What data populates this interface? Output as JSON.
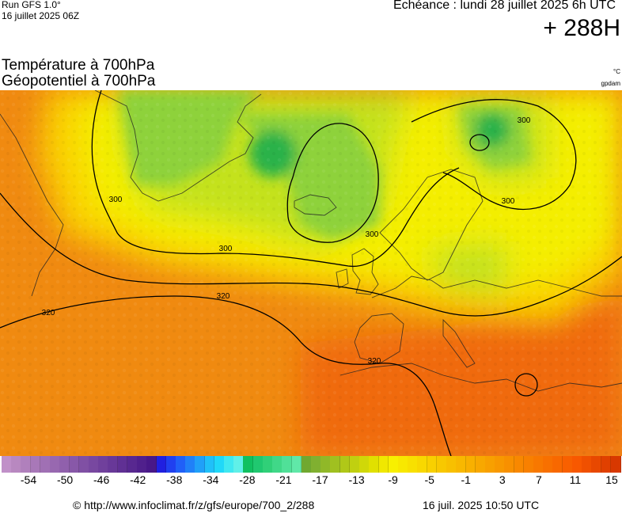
{
  "header": {
    "run": "Run GFS 1.0°",
    "run_date": "16 juillet 2025 06Z",
    "echeance": "Echéance : lundi 28 juillet 2025 6h UTC",
    "lead_time": "+ 288H"
  },
  "titles": {
    "line1": "Température à 700hPa",
    "line2": "Géopotentiel à 700hPa",
    "unit_temp": "°C",
    "unit_geo": "gpdam"
  },
  "map": {
    "region": "Europe",
    "contour_labels": [
      "300",
      "300",
      "300",
      "300",
      "300",
      "320",
      "320",
      "320"
    ],
    "colors": {
      "ocean_band": "#f5ab10",
      "warm": "#f08a10",
      "hot": "#f06a10",
      "mid": "#fad200",
      "cool": "#f4ee00",
      "greenish": "#c4e21c",
      "green": "#8ed23a",
      "deep_green": "#2ab24a"
    }
  },
  "color_scale": {
    "colors": [
      "#c090c8",
      "#b888c0",
      "#b080bc",
      "#a878b8",
      "#a070b4",
      "#9868b0",
      "#9060ac",
      "#8858a8",
      "#8050a4",
      "#7848a0",
      "#70409c",
      "#683898",
      "#603094",
      "#582890",
      "#50208c",
      "#481888",
      "#2020e0",
      "#2040f0",
      "#2060f8",
      "#2080f8",
      "#20a0f8",
      "#20c0f8",
      "#20d8f8",
      "#40e8f0",
      "#60f0e8",
      "#10c060",
      "#20c870",
      "#30d078",
      "#40d888",
      "#50e098",
      "#60e8a8",
      "#70a830",
      "#80b030",
      "#90b828",
      "#a0c020",
      "#b0c818",
      "#c0d010",
      "#d0d808",
      "#e0e000",
      "#f0e800",
      "#f8f000",
      "#f8e800",
      "#f8e000",
      "#f8d800",
      "#f8d000",
      "#f8c800",
      "#f8c000",
      "#f8b800",
      "#f8b000",
      "#f8a800",
      "#f8a000",
      "#f89800",
      "#f89000",
      "#f88800",
      "#f88000",
      "#f87800",
      "#f87000",
      "#f86800",
      "#f86000",
      "#f85800",
      "#f05000",
      "#e84800",
      "#e04000",
      "#d83800"
    ],
    "ticks": [
      "-54",
      "-50",
      "-46",
      "-42",
      "-38",
      "-34",
      "-28",
      "-21",
      "-17",
      "-13",
      "-9",
      "-5",
      "-1",
      "3",
      "7",
      "11",
      "15"
    ]
  },
  "footer": {
    "copyright": "© http://www.infoclimat.fr/z/gfs/europe/700_2/288",
    "generated": "16 juil. 2025 10:50 UTC"
  }
}
